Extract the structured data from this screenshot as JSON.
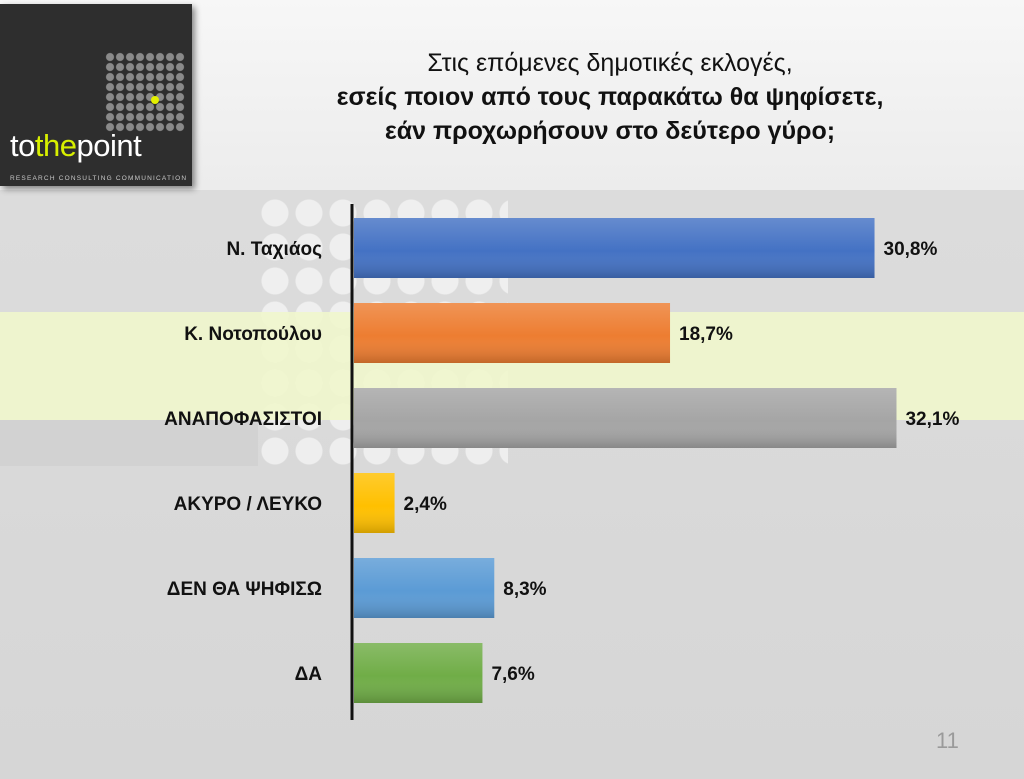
{
  "title": {
    "line1": "Στις επόμενες δημοτικές εκλογές,",
    "line2": "εσείς ποιον από τους παρακάτω θα  ψηφίσετε,",
    "line3": "εάν προχωρήσουν στο δεύτερο γύρο;"
  },
  "logo": {
    "wordmark_pre": "to",
    "wordmark_highlight": "the",
    "wordmark_post": "point",
    "tagline": "RESEARCH  CONSULTING  COMMUNICATION"
  },
  "page_number": "11",
  "chart_data": {
    "type": "bar",
    "orientation": "horizontal",
    "categories": [
      "Ν. Ταχιάος",
      "Κ. Νοτοπούλου",
      "ΑΝΑΠΟΦΑΣΙΣΤΟΙ",
      "ΑΚΥΡΟ / ΛΕΥΚΟ",
      "ΔΕΝ ΘΑ ΨΗΦΙΣΩ",
      "ΔΑ"
    ],
    "values": [
      30.8,
      18.7,
      32.1,
      2.4,
      8.3,
      7.6
    ],
    "value_labels": [
      "30,8%",
      "18,7%",
      "32,1%",
      "2,4%",
      "8,3%",
      "7,6%"
    ],
    "colors": [
      "#4472c4",
      "#ed7d31",
      "#a5a5a5",
      "#ffc000",
      "#5b9bd5",
      "#70ad47"
    ],
    "xlim": [
      0,
      33
    ],
    "grid": false,
    "legend": "none"
  }
}
